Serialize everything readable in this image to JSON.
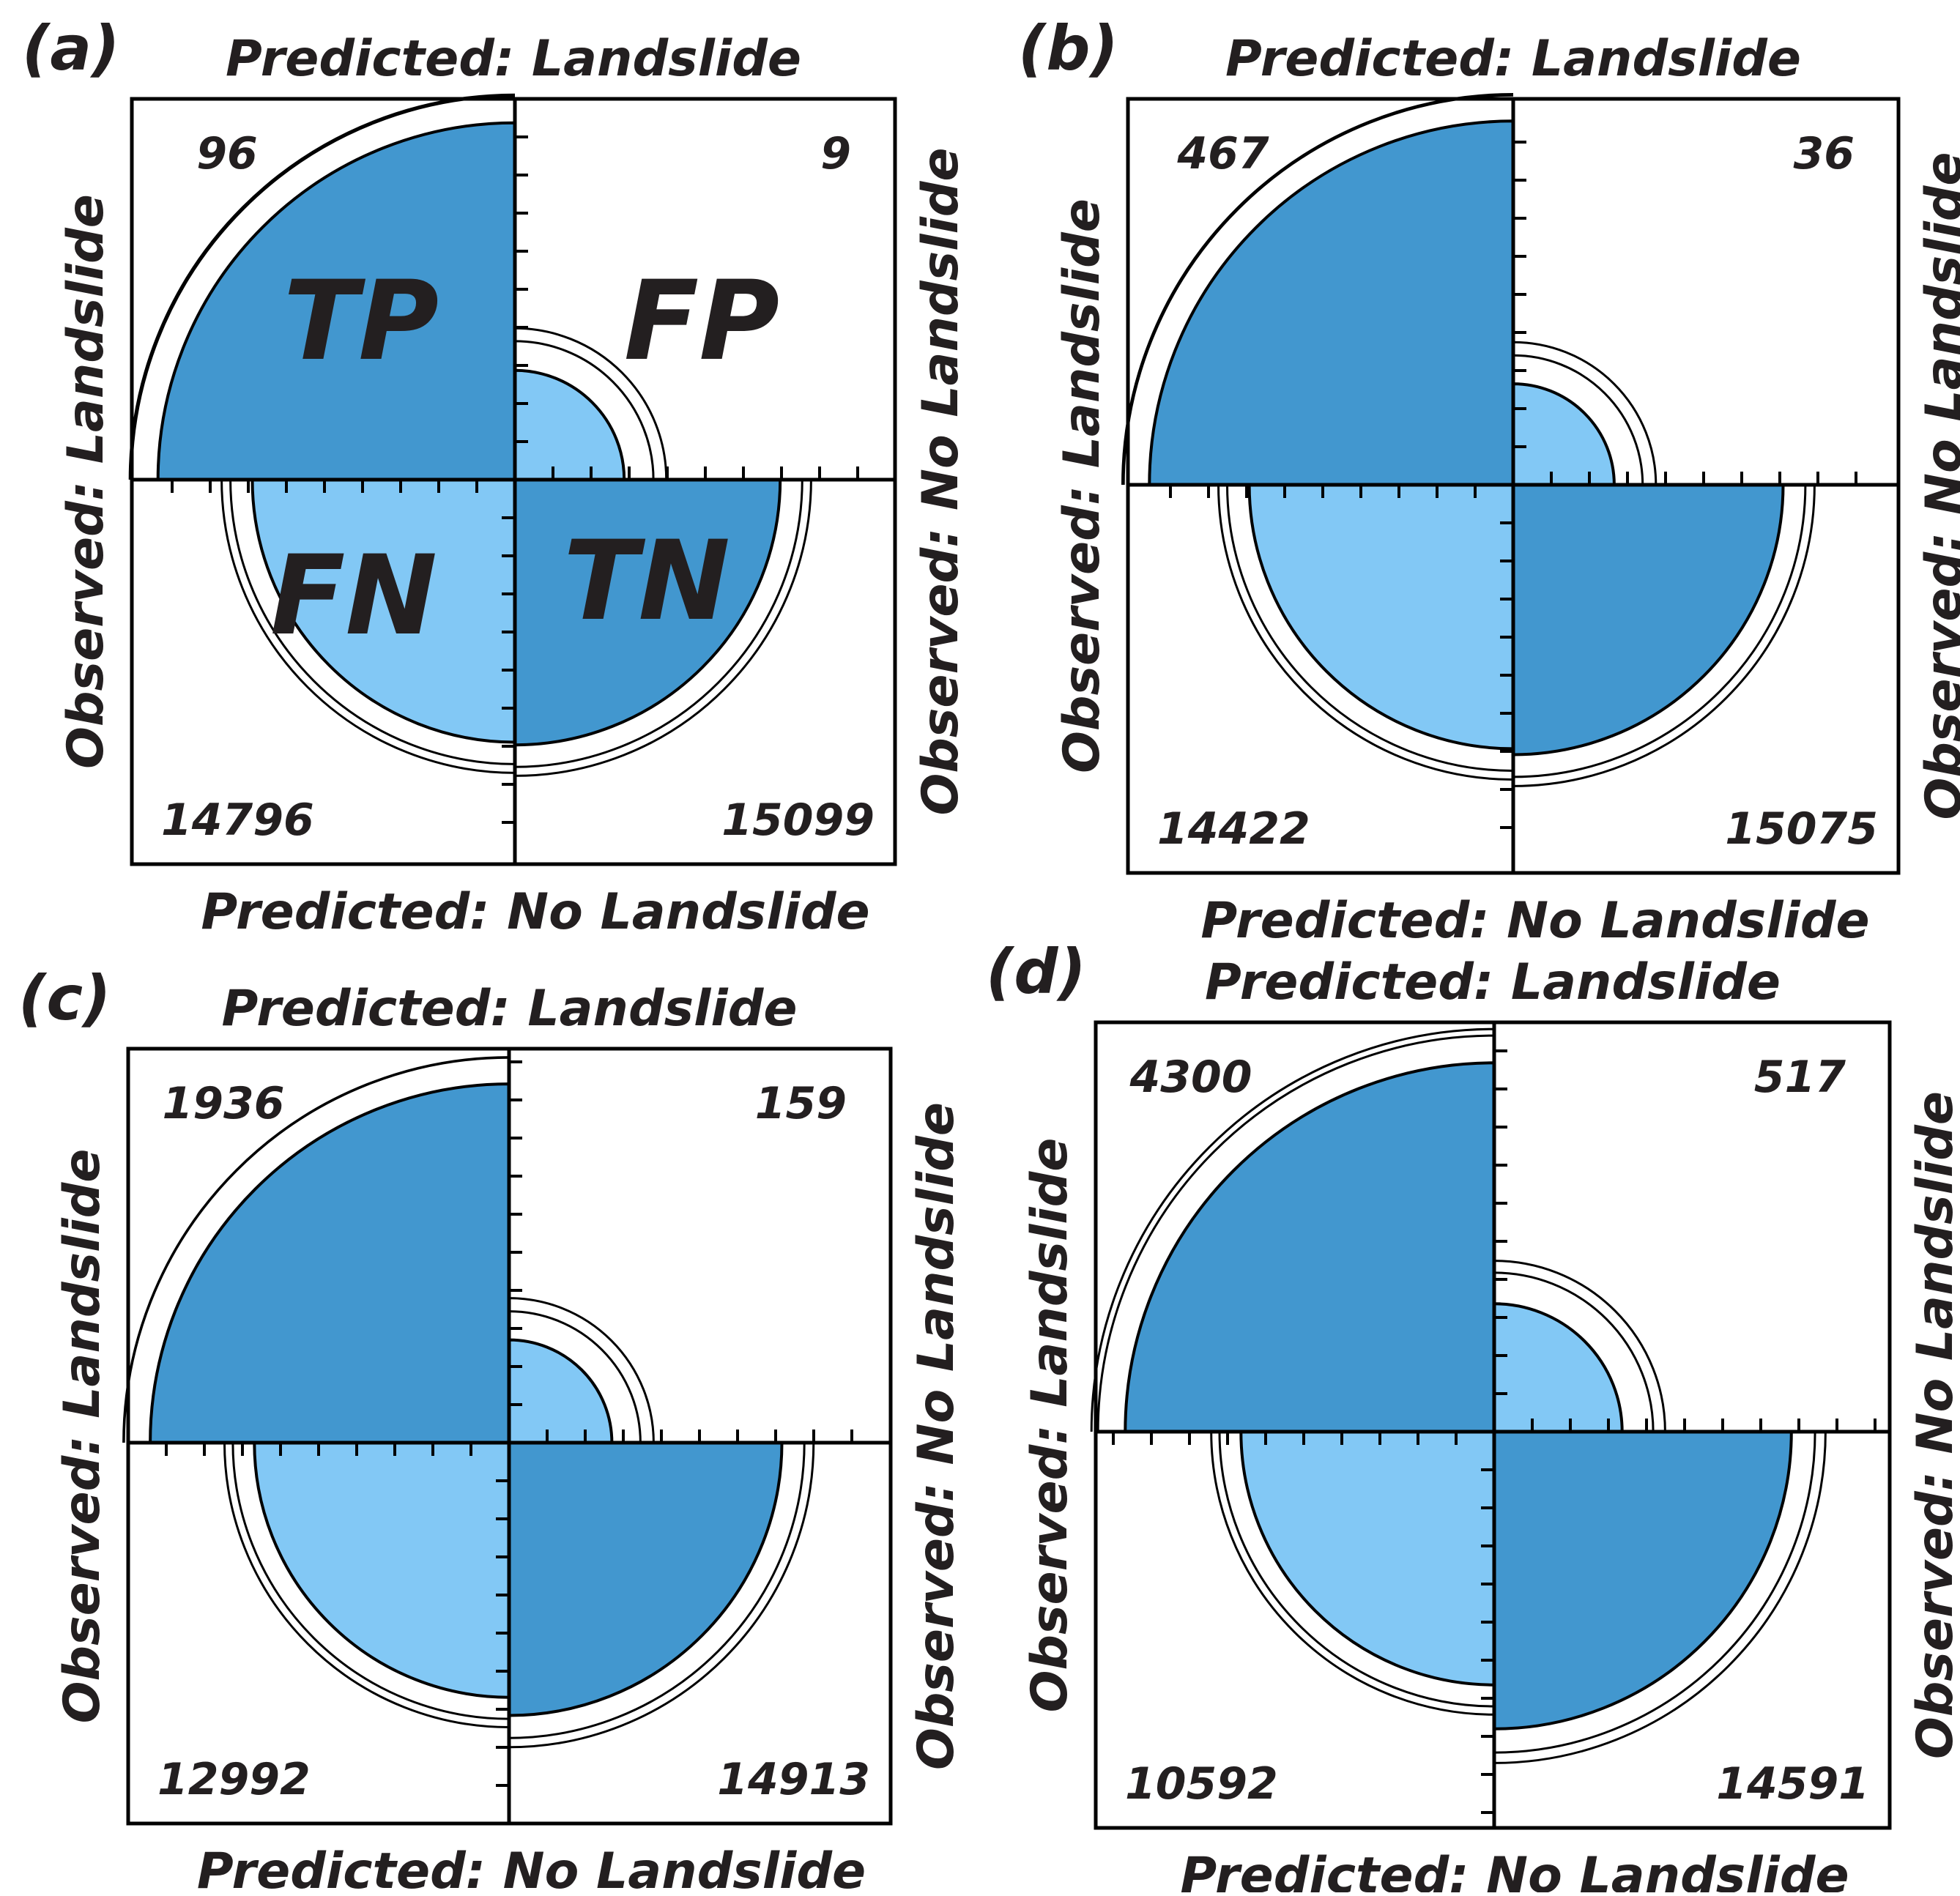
{
  "labels": {
    "predicted_landslide": "Predicted: Landslide",
    "predicted_no_landslide": "Predicted: No Landslide",
    "observed_landslide": "Observed: Landslide",
    "observed_no_landslide": "Observed: No Landslide"
  },
  "quadrant_codes": {
    "tp": "TP",
    "fp": "FP",
    "fn": "FN",
    "tn": "TN"
  },
  "colors": {
    "dark_blue": "#4297cf",
    "light_blue": "#82c8f5",
    "outline": "#000000"
  },
  "chart_data": [
    {
      "type": "fourfold",
      "panel": "(a)",
      "tp": 96,
      "fp": 9,
      "fn": 14796,
      "tn": 15099,
      "show_codes": true
    },
    {
      "type": "fourfold",
      "panel": "(b)",
      "tp": 467,
      "fp": 36,
      "fn": 14422,
      "tn": 15075,
      "show_codes": false
    },
    {
      "type": "fourfold",
      "panel": "(c)",
      "tp": 1936,
      "fp": 159,
      "fn": 12992,
      "tn": 14913,
      "show_codes": false
    },
    {
      "type": "fourfold",
      "panel": "(d)",
      "tp": 4300,
      "fp": 517,
      "fn": 10592,
      "tn": 14591,
      "show_codes": false
    }
  ]
}
